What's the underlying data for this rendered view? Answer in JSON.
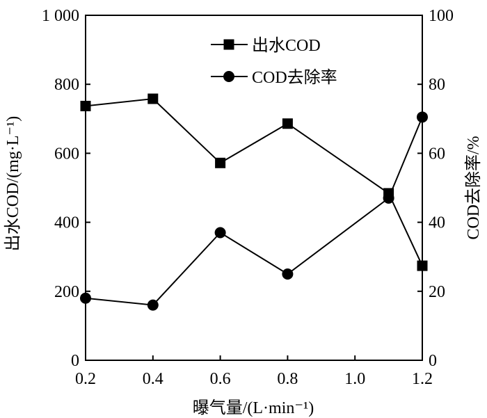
{
  "chart_data": {
    "type": "line",
    "x": [
      0.2,
      0.4,
      0.6,
      0.8,
      1.1,
      1.2
    ],
    "xlim": [
      0.2,
      1.2
    ],
    "xticks": [
      "0.2",
      "0.4",
      "0.6",
      "0.8",
      "1.0",
      "1.2"
    ],
    "xlabel": "曝气量/(L·min⁻¹)",
    "ylabel_left": "出水COD/(mg·L⁻¹)",
    "ylabel_right": "COD去除率/%",
    "ylim_left": [
      0,
      1000
    ],
    "ylim_right": [
      0,
      100
    ],
    "yticks_left": [
      "0",
      "200",
      "400",
      "600",
      "800",
      "1 000"
    ],
    "yticks_right": [
      "0",
      "20",
      "40",
      "60",
      "80",
      "100"
    ],
    "legend_position": "top-center",
    "series": [
      {
        "name": "出水COD",
        "axis": "left",
        "marker": "square",
        "values": [
          737,
          758,
          572,
          686,
          484,
          274
        ]
      },
      {
        "name": "COD去除率",
        "axis": "right",
        "marker": "circle",
        "values": [
          18,
          16,
          37,
          25,
          47,
          70.5
        ]
      }
    ]
  }
}
